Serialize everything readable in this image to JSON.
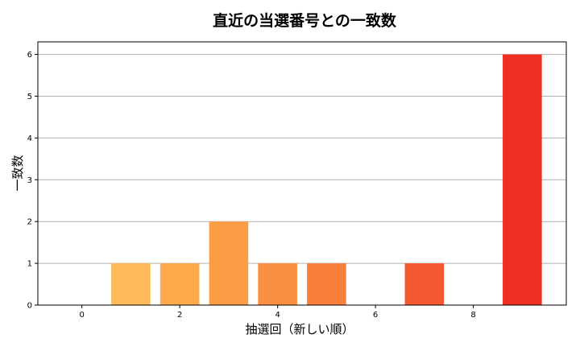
{
  "chart_data": {
    "type": "bar",
    "title": "直近の当選番号との一致数",
    "xlabel": "抽選回（新しい順）",
    "ylabel": "一致数",
    "x": [
      0,
      1,
      2,
      3,
      4,
      5,
      6,
      7,
      8,
      9
    ],
    "values": [
      0,
      1,
      1,
      2,
      1,
      1,
      0,
      1,
      0,
      6
    ],
    "bar_colors": [
      "#fff0a0",
      "#fdb95a",
      "#fcaa4c",
      "#fb9d46",
      "#fa8f40",
      "#f9803b",
      "#f77035",
      "#f45830",
      "#f24329",
      "#ee2f22"
    ],
    "xlim": [
      -0.9,
      9.9
    ],
    "ylim": [
      0,
      6.3
    ],
    "xticks": [
      0,
      2,
      4,
      6,
      8
    ],
    "yticks": [
      0,
      1,
      2,
      3,
      4,
      5,
      6
    ],
    "grid": "y",
    "gridline_color": "#b0b0b0"
  }
}
